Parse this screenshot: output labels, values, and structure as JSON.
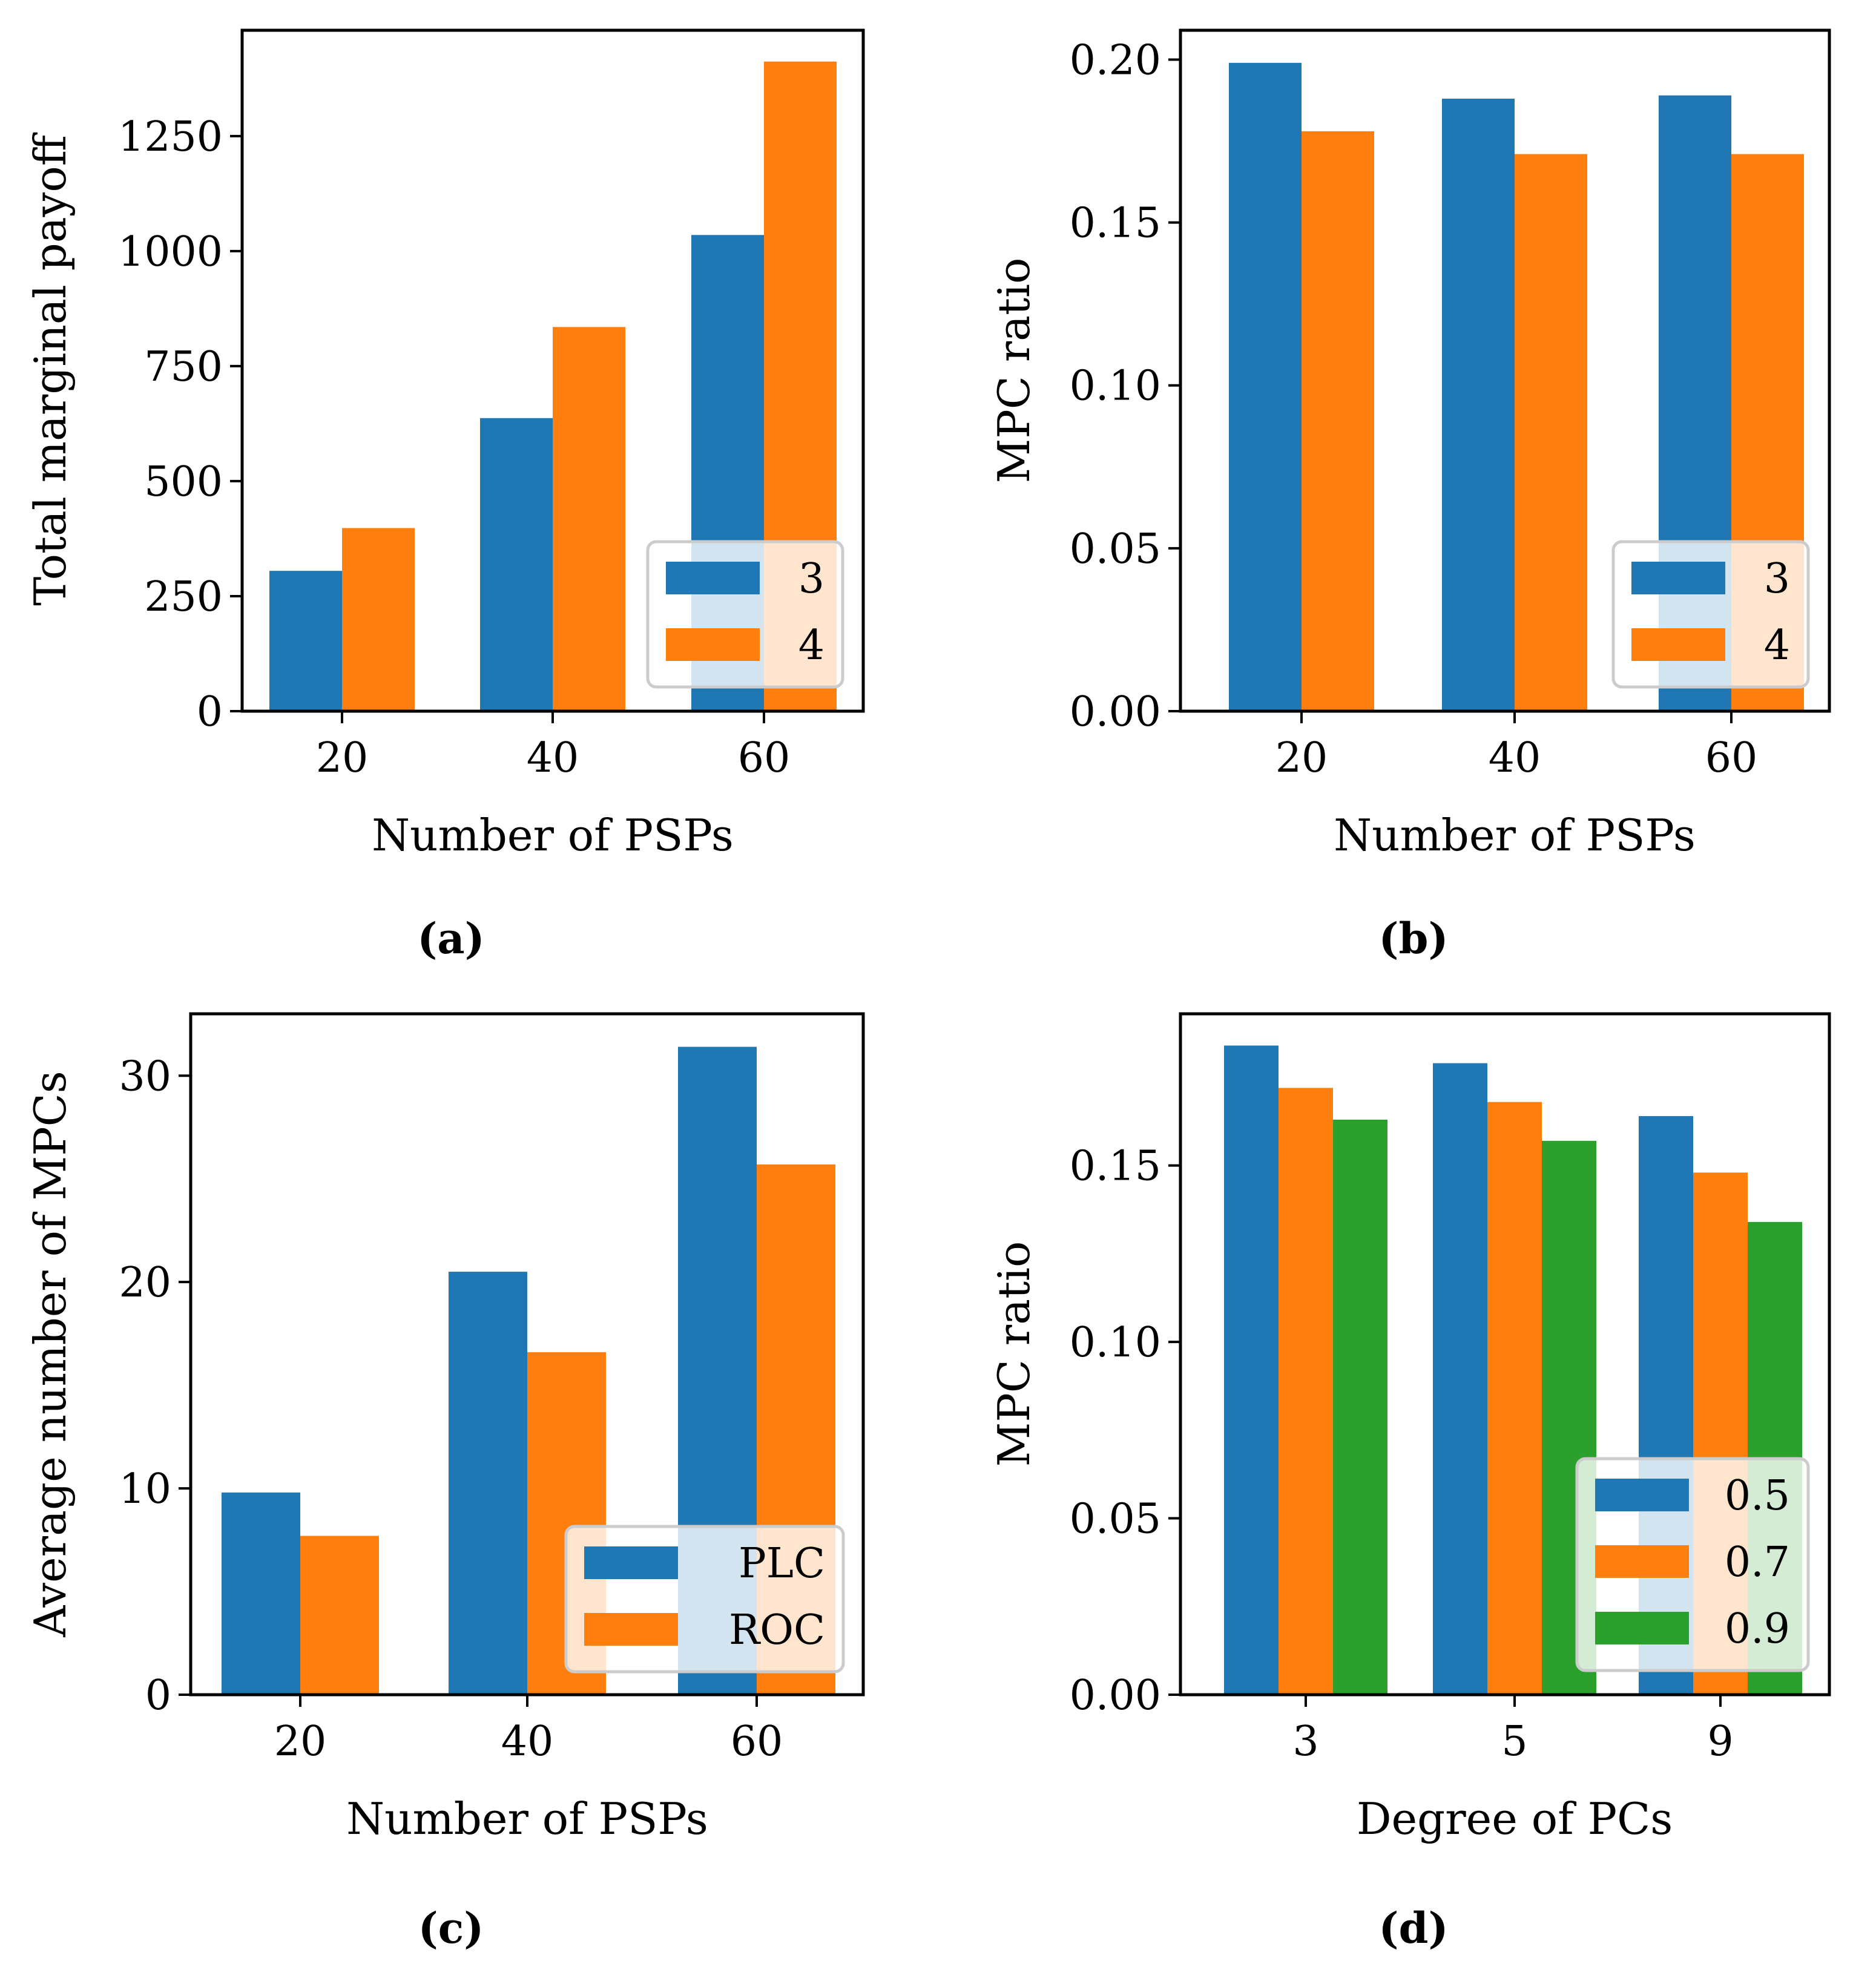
{
  "figure": {
    "colors": {
      "blue": "#1f77b4",
      "orange": "#ff7f0e",
      "green": "#2ca02c"
    }
  },
  "chart_data": [
    {
      "id": "a",
      "caption": "(a)",
      "type": "bar",
      "title": "",
      "xlabel": "Number of PSPs",
      "ylabel": "Total marginal payoff",
      "categories": [
        "20",
        "40",
        "60"
      ],
      "series": [
        {
          "name": "3",
          "color": "#1f77b4",
          "values": [
            305,
            637,
            1035
          ]
        },
        {
          "name": "4",
          "color": "#ff7f0e",
          "values": [
            398,
            835,
            1412
          ]
        }
      ],
      "ylim": [
        0,
        1480
      ],
      "yticks": [
        0,
        250,
        500,
        750,
        1000,
        1250
      ],
      "ytick_labels": [
        "0",
        "250",
        "500",
        "750",
        "1000",
        "1250"
      ],
      "grid": false,
      "legend_position": "lower right"
    },
    {
      "id": "b",
      "caption": "(b)",
      "type": "bar",
      "title": "",
      "xlabel": "Number of PSPs",
      "ylabel": "MPC ratio",
      "categories": [
        "20",
        "40",
        "60"
      ],
      "series": [
        {
          "name": "3",
          "color": "#1f77b4",
          "values": [
            0.199,
            0.188,
            0.189
          ]
        },
        {
          "name": "4",
          "color": "#ff7f0e",
          "values": [
            0.178,
            0.171,
            0.171
          ]
        }
      ],
      "ylim": [
        0,
        0.209
      ],
      "yticks": [
        0,
        0.05,
        0.1,
        0.15,
        0.2
      ],
      "ytick_labels": [
        "0.00",
        "0.05",
        "0.10",
        "0.15",
        "0.20"
      ],
      "grid": false,
      "legend_position": "lower right"
    },
    {
      "id": "c",
      "caption": "(c)",
      "type": "bar",
      "title": "",
      "xlabel": "Number of PSPs",
      "ylabel": "Average number of MPCs",
      "categories": [
        "20",
        "40",
        "60"
      ],
      "series": [
        {
          "name": "PLC",
          "color": "#1f77b4",
          "values": [
            9.8,
            20.5,
            31.4
          ]
        },
        {
          "name": "ROC",
          "color": "#ff7f0e",
          "values": [
            7.7,
            16.6,
            25.7
          ]
        }
      ],
      "ylim": [
        0,
        33
      ],
      "yticks": [
        0,
        10,
        20,
        30
      ],
      "ytick_labels": [
        "0",
        "10",
        "20",
        "30"
      ],
      "grid": false,
      "legend_position": "lower right"
    },
    {
      "id": "d",
      "caption": "(d)",
      "type": "bar",
      "title": "",
      "xlabel": "Degree of PCs",
      "ylabel": "MPC ratio",
      "categories": [
        "3",
        "5",
        "9"
      ],
      "series": [
        {
          "name": "0.5",
          "color": "#1f77b4",
          "values": [
            0.184,
            0.179,
            0.164
          ]
        },
        {
          "name": "0.7",
          "color": "#ff7f0e",
          "values": [
            0.172,
            0.168,
            0.148
          ]
        },
        {
          "name": "0.9",
          "color": "#2ca02c",
          "values": [
            0.163,
            0.157,
            0.134
          ]
        }
      ],
      "ylim": [
        0,
        0.193
      ],
      "yticks": [
        0,
        0.05,
        0.1,
        0.15
      ],
      "ytick_labels": [
        "0.00",
        "0.05",
        "0.10",
        "0.15"
      ],
      "grid": false,
      "legend_position": "lower right"
    }
  ]
}
